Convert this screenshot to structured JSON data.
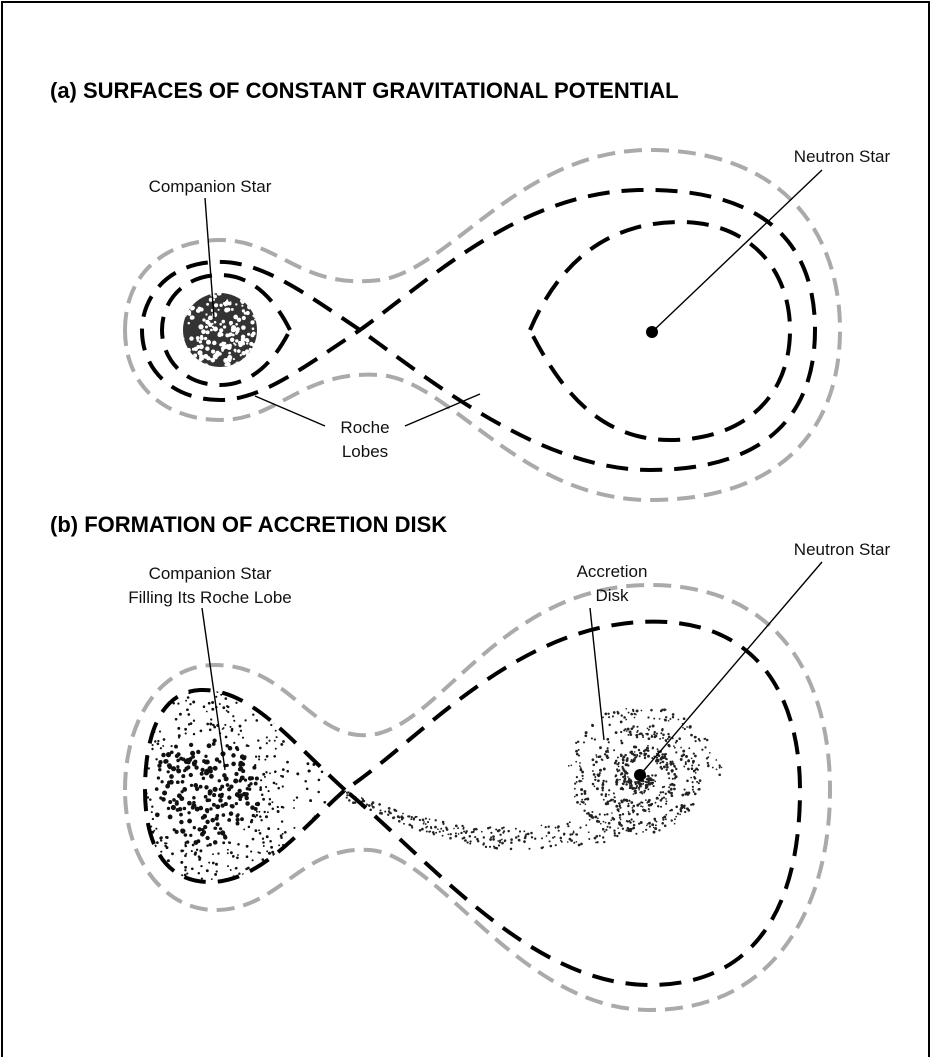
{
  "panels": [
    {
      "title": "(a) SURFACES OF CONSTANT GRAVITATIONAL POTENTIAL",
      "labels": [
        {
          "lines": [
            "Companion Star"
          ]
        },
        {
          "lines": [
            "Neutron Star"
          ]
        },
        {
          "lines": [
            "Roche",
            "Lobes"
          ]
        }
      ]
    },
    {
      "title": "(b) FORMATION OF ACCRETION DISK",
      "labels": [
        {
          "lines": [
            "Companion Star",
            "Filling Its Roche Lobe"
          ]
        },
        {
          "lines": [
            "Accretion",
            "Disk"
          ]
        },
        {
          "lines": [
            "Neutron Star"
          ]
        }
      ]
    }
  ]
}
